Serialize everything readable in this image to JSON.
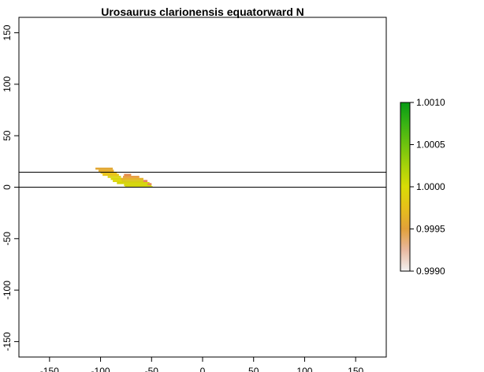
{
  "title": "Urosaurus clarionensis equatorward N",
  "map": {
    "xlim": [
      -180,
      180
    ],
    "ylim": [
      -165,
      165
    ],
    "x_ticks": [
      -150,
      -100,
      -50,
      0,
      50,
      100,
      150
    ],
    "x_tick_labels": [
      "-150",
      "-100",
      "-50",
      "0",
      "50",
      "100",
      "150"
    ],
    "y_ticks": [
      -150,
      -100,
      -50,
      0,
      50,
      100,
      150
    ],
    "y_tick_labels": [
      "-150",
      "-100",
      "-50",
      "0",
      "50",
      "100",
      "150"
    ],
    "horizontal_lines": [
      0,
      14.5
    ],
    "range_cells": [
      {
        "x0": -105,
        "x1": -88,
        "y0": 17,
        "y1": 19,
        "value": 0.9996,
        "color": "#e2a632"
      },
      {
        "x0": -102,
        "x1": -87,
        "y0": 15,
        "y1": 17,
        "value": 0.99965,
        "color": "#e6ad28"
      },
      {
        "x0": -100,
        "x1": -84,
        "y0": 13,
        "y1": 15,
        "value": 0.99975,
        "color": "#ebc11e"
      },
      {
        "x0": -98,
        "x1": -82,
        "y0": 11,
        "y1": 13,
        "value": 0.9998,
        "color": "#e9c51a"
      },
      {
        "x0": -93,
        "x1": -80,
        "y0": 9,
        "y1": 11,
        "value": 0.9999,
        "color": "#ddd310"
      },
      {
        "x0": -90,
        "x1": -78,
        "y0": 7,
        "y1": 9,
        "value": 0.99995,
        "color": "#d9d80a"
      },
      {
        "x0": -88,
        "x1": -76,
        "y0": 5,
        "y1": 7,
        "value": 1.0,
        "color": "#dcd60a"
      },
      {
        "x0": -84,
        "x1": -78,
        "y0": 3,
        "y1": 5,
        "value": 1.0,
        "color": "#d4d40a"
      },
      {
        "x0": -77,
        "x1": -70,
        "y0": 11,
        "y1": 13,
        "value": 0.9995,
        "color": "#e58a4a"
      },
      {
        "x0": -78,
        "x1": -62,
        "y0": 9,
        "y1": 11,
        "value": 0.9996,
        "color": "#e69a3a"
      },
      {
        "x0": -80,
        "x1": -58,
        "y0": 7,
        "y1": 9,
        "value": 0.99975,
        "color": "#e5b32a"
      },
      {
        "x0": -79,
        "x1": -55,
        "y0": 5,
        "y1": 7,
        "value": 0.9999,
        "color": "#d8c81a"
      },
      {
        "x0": -78,
        "x1": -52,
        "y0": 3,
        "y1": 5,
        "value": 1.0,
        "color": "#d6d50c"
      },
      {
        "x0": -77,
        "x1": -50,
        "y0": 1,
        "y1": 3,
        "value": 1.0,
        "color": "#d3d60a"
      },
      {
        "x0": -76,
        "x1": -49,
        "y0": 0,
        "y1": 1,
        "value": 1.0,
        "color": "#d0d30a"
      },
      {
        "x0": -58,
        "x1": -54,
        "y0": 5,
        "y1": 7,
        "value": 0.9994,
        "color": "#e7806a"
      },
      {
        "x0": -54,
        "x1": -50,
        "y0": 2,
        "y1": 4,
        "value": 0.99945,
        "color": "#e68a5a"
      }
    ]
  },
  "legend": {
    "range": [
      0.999,
      1.001
    ],
    "tick_values": [
      0.999,
      0.9995,
      1.0,
      1.0005,
      1.001
    ],
    "tick_labels": [
      "0.9990",
      "0.9995",
      "1.0000",
      "1.0005",
      "1.0010"
    ],
    "gradient_colors": [
      "#f2f2f2",
      "#e8b8a0",
      "#e2a03a",
      "#e6c01a",
      "#d9dc05",
      "#a6d20a",
      "#6ec30e",
      "#38b314",
      "#069a14"
    ]
  }
}
